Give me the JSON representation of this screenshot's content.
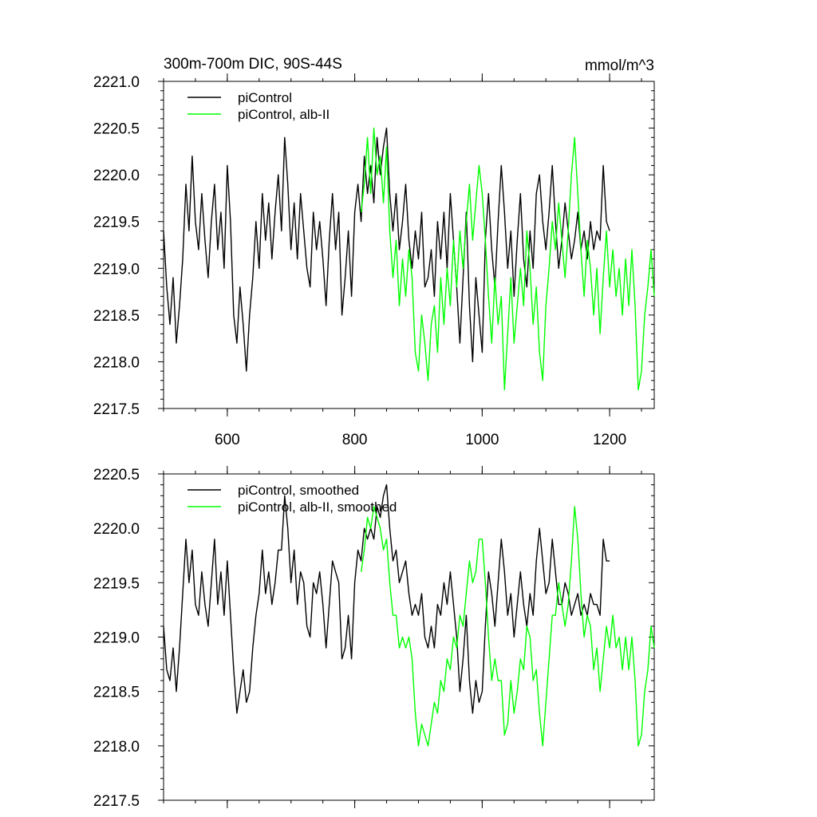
{
  "chart_data": [
    {
      "type": "line",
      "title_left": "300m-700m DIC, 90S-44S",
      "title_right": "mmol/m^3",
      "xlabel": "",
      "ylabel": "",
      "xlim": [
        500,
        1270
      ],
      "ylim": [
        2217.5,
        2221.0
      ],
      "xticks": [
        600,
        800,
        1000,
        1200
      ],
      "xtick_labels": [
        "600",
        "800",
        "1000",
        "1200"
      ],
      "yticks": [
        2217.5,
        2218.0,
        2218.5,
        2219.0,
        2219.5,
        2220.0,
        2220.5,
        2221.0
      ],
      "ytick_labels": [
        "2217.5",
        "2218.0",
        "2218.5",
        "2219.0",
        "2219.5",
        "2220.0",
        "2220.5",
        "2221.0"
      ],
      "legend_position": "top-left",
      "series": [
        {
          "name": "piControl",
          "color": "#000000",
          "x": [
            500,
            505,
            510,
            515,
            520,
            525,
            530,
            535,
            540,
            545,
            550,
            555,
            560,
            565,
            570,
            575,
            580,
            585,
            590,
            595,
            600,
            605,
            610,
            615,
            620,
            625,
            630,
            635,
            640,
            645,
            650,
            655,
            660,
            665,
            670,
            675,
            680,
            685,
            690,
            695,
            700,
            705,
            710,
            715,
            720,
            725,
            730,
            735,
            740,
            745,
            750,
            755,
            760,
            765,
            770,
            775,
            780,
            785,
            790,
            795,
            800,
            805,
            810,
            815,
            820,
            825,
            830,
            835,
            840,
            845,
            850,
            855,
            860,
            865,
            870,
            875,
            880,
            885,
            890,
            895,
            900,
            905,
            910,
            915,
            920,
            925,
            930,
            935,
            940,
            945,
            950,
            955,
            960,
            965,
            970,
            975,
            980,
            985,
            990,
            995,
            1000,
            1005,
            1010,
            1015,
            1020,
            1025,
            1030,
            1035,
            1040,
            1045,
            1050,
            1055,
            1060,
            1065,
            1070,
            1075,
            1080,
            1085,
            1090,
            1095,
            1100,
            1105,
            1110,
            1115,
            1120,
            1125,
            1130,
            1135,
            1140,
            1145,
            1150,
            1155,
            1160,
            1165,
            1170,
            1175,
            1180,
            1185,
            1190,
            1195,
            1200
          ],
          "values": [
            2219.4,
            2218.8,
            2218.4,
            2218.9,
            2218.2,
            2218.6,
            2219.1,
            2219.9,
            2219.4,
            2220.2,
            2219.5,
            2219.2,
            2219.8,
            2219.3,
            2218.9,
            2219.5,
            2219.9,
            2219.2,
            2219.6,
            2219.0,
            2220.1,
            2219.5,
            2218.5,
            2218.2,
            2218.8,
            2218.4,
            2217.9,
            2218.5,
            2218.9,
            2219.5,
            2219.0,
            2219.8,
            2219.3,
            2219.7,
            2219.1,
            2219.6,
            2220.0,
            2219.4,
            2220.4,
            2219.9,
            2219.2,
            2219.7,
            2219.1,
            2219.8,
            2219.4,
            2219.0,
            2218.8,
            2219.6,
            2219.2,
            2219.5,
            2219.1,
            2218.6,
            2219.3,
            2219.8,
            2219.2,
            2219.6,
            2218.5,
            2218.9,
            2219.4,
            2218.7,
            2219.6,
            2219.9,
            2219.5,
            2220.2,
            2219.8,
            2220.1,
            2219.7,
            2220.4,
            2220.0,
            2220.3,
            2220.5,
            2219.8,
            2219.4,
            2219.8,
            2219.2,
            2219.5,
            2219.9,
            2219.3,
            2219.0,
            2219.4,
            2219.1,
            2219.6,
            2218.8,
            2218.9,
            2219.2,
            2218.7,
            2219.5,
            2219.1,
            2219.6,
            2219.0,
            2219.8,
            2219.3,
            2218.8,
            2218.2,
            2218.9,
            2219.6,
            2218.6,
            2218.0,
            2218.9,
            2218.5,
            2218.1,
            2219.3,
            2219.8,
            2219.2,
            2218.8,
            2219.5,
            2220.1,
            2219.6,
            2219.0,
            2219.4,
            2218.7,
            2219.3,
            2219.8,
            2219.1,
            2218.8,
            2219.4,
            2219.0,
            2219.8,
            2220.0,
            2219.5,
            2219.2,
            2219.6,
            2220.1,
            2219.5,
            2219.0,
            2219.3,
            2219.7,
            2219.4,
            2219.1,
            2219.3,
            2219.6,
            2219.2,
            2219.4,
            2219.1,
            2219.5,
            2219.2,
            2219.4,
            2219.3,
            2220.1,
            2219.5,
            2219.4
          ]
        },
        {
          "name": "piControl, alb-II",
          "color": "#00ff00",
          "x": [
            810,
            815,
            820,
            825,
            830,
            835,
            840,
            845,
            850,
            855,
            860,
            865,
            870,
            875,
            880,
            885,
            890,
            895,
            900,
            905,
            910,
            915,
            920,
            925,
            930,
            935,
            940,
            945,
            950,
            955,
            960,
            965,
            970,
            975,
            980,
            985,
            990,
            995,
            1000,
            1005,
            1010,
            1015,
            1020,
            1025,
            1030,
            1035,
            1040,
            1045,
            1050,
            1055,
            1060,
            1065,
            1070,
            1075,
            1080,
            1085,
            1090,
            1095,
            1100,
            1105,
            1110,
            1115,
            1120,
            1125,
            1130,
            1135,
            1140,
            1145,
            1150,
            1155,
            1160,
            1165,
            1170,
            1175,
            1180,
            1185,
            1190,
            1195,
            1200,
            1205,
            1210,
            1215,
            1220,
            1225,
            1230,
            1235,
            1240,
            1245,
            1250,
            1255,
            1260,
            1265,
            1270
          ],
          "values": [
            2219.6,
            2219.9,
            2220.4,
            2219.8,
            2220.5,
            2220.0,
            2220.2,
            2219.7,
            2220.3,
            2219.4,
            2218.9,
            2219.3,
            2218.6,
            2219.1,
            2218.7,
            2219.2,
            2218.9,
            2218.1,
            2217.9,
            2218.5,
            2218.2,
            2217.8,
            2218.4,
            2218.6,
            2218.1,
            2218.9,
            2218.4,
            2219.0,
            2218.6,
            2219.3,
            2218.8,
            2219.4,
            2219.0,
            2219.5,
            2219.9,
            2219.3,
            2219.7,
            2220.1,
            2219.8,
            2219.3,
            2218.7,
            2218.2,
            2218.9,
            2218.4,
            2218.7,
            2217.7,
            2218.3,
            2218.9,
            2218.2,
            2218.6,
            2219.0,
            2218.6,
            2219.4,
            2219.0,
            2218.4,
            2218.8,
            2218.1,
            2217.8,
            2218.6,
            2219.0,
            2219.5,
            2219.2,
            2219.7,
            2219.3,
            2218.9,
            2219.4,
            2220.0,
            2220.4,
            2219.8,
            2219.2,
            2218.7,
            2219.3,
            2219.0,
            2218.5,
            2219.0,
            2218.3,
            2218.9,
            2219.4,
            2218.8,
            2219.2,
            2218.7,
            2219.0,
            2218.5,
            2219.1,
            2218.6,
            2219.2,
            2218.6,
            2217.7,
            2217.9,
            2218.5,
            2218.8,
            2219.2,
            2218.7
          ]
        }
      ]
    },
    {
      "type": "line",
      "title_left": "",
      "title_right": "",
      "xlabel": "",
      "ylabel": "",
      "xlim": [
        500,
        1270
      ],
      "ylim": [
        2217.5,
        2220.5
      ],
      "xticks": [
        600,
        800,
        1000,
        1200
      ],
      "xtick_labels": [],
      "yticks": [
        2217.5,
        2218.0,
        2218.5,
        2219.0,
        2219.5,
        2220.0,
        2220.5
      ],
      "ytick_labels": [
        "2217.5",
        "2218.0",
        "2218.5",
        "2219.0",
        "2219.5",
        "2220.0",
        "2220.5"
      ],
      "legend_position": "top-left",
      "series": [
        {
          "name": "piControl, smoothed",
          "color": "#000000",
          "x": [
            500,
            505,
            510,
            515,
            520,
            525,
            530,
            535,
            540,
            545,
            550,
            555,
            560,
            565,
            570,
            575,
            580,
            585,
            590,
            595,
            600,
            605,
            610,
            615,
            620,
            625,
            630,
            635,
            640,
            645,
            650,
            655,
            660,
            665,
            670,
            675,
            680,
            685,
            690,
            695,
            700,
            705,
            710,
            715,
            720,
            725,
            730,
            735,
            740,
            745,
            750,
            755,
            760,
            765,
            770,
            775,
            780,
            785,
            790,
            795,
            800,
            805,
            810,
            815,
            820,
            825,
            830,
            835,
            840,
            845,
            850,
            855,
            860,
            865,
            870,
            875,
            880,
            885,
            890,
            895,
            900,
            905,
            910,
            915,
            920,
            925,
            930,
            935,
            940,
            945,
            950,
            955,
            960,
            965,
            970,
            975,
            980,
            985,
            990,
            995,
            1000,
            1005,
            1010,
            1015,
            1020,
            1025,
            1030,
            1035,
            1040,
            1045,
            1050,
            1055,
            1060,
            1065,
            1070,
            1075,
            1080,
            1085,
            1090,
            1095,
            1100,
            1105,
            1110,
            1115,
            1120,
            1125,
            1130,
            1135,
            1140,
            1145,
            1150,
            1155,
            1160,
            1165,
            1170,
            1175,
            1180,
            1185,
            1190,
            1195,
            1200
          ],
          "values": [
            2219.1,
            2218.7,
            2218.6,
            2218.9,
            2218.5,
            2218.9,
            2219.4,
            2219.9,
            2219.5,
            2219.8,
            2219.3,
            2219.2,
            2219.6,
            2219.3,
            2219.1,
            2219.5,
            2219.9,
            2219.3,
            2219.6,
            2219.2,
            2219.7,
            2219.2,
            2218.7,
            2218.3,
            2218.5,
            2218.7,
            2218.4,
            2218.5,
            2218.9,
            2219.2,
            2219.4,
            2219.8,
            2219.4,
            2219.6,
            2219.3,
            2219.5,
            2219.8,
            2219.8,
            2220.3,
            2220.0,
            2219.5,
            2219.8,
            2219.3,
            2219.6,
            2219.5,
            2219.1,
            2219.0,
            2219.5,
            2219.4,
            2219.6,
            2219.3,
            2218.9,
            2219.3,
            2219.7,
            2219.6,
            2219.5,
            2218.8,
            2218.9,
            2219.2,
            2218.8,
            2219.5,
            2219.8,
            2219.7,
            2220.0,
            2219.9,
            2220.0,
            2219.9,
            2220.2,
            2220.1,
            2220.3,
            2220.4,
            2220.0,
            2219.7,
            2219.8,
            2219.5,
            2219.6,
            2219.7,
            2219.4,
            2219.2,
            2219.3,
            2219.2,
            2219.4,
            2219.0,
            2218.9,
            2219.1,
            2218.9,
            2219.3,
            2219.2,
            2219.5,
            2219.3,
            2219.6,
            2219.3,
            2219.0,
            2218.5,
            2218.8,
            2219.2,
            2218.6,
            2218.3,
            2218.6,
            2218.4,
            2218.5,
            2219.1,
            2219.6,
            2219.4,
            2219.1,
            2219.5,
            2219.9,
            2219.6,
            2219.2,
            2219.4,
            2219.0,
            2219.3,
            2219.6,
            2219.3,
            2219.1,
            2219.4,
            2219.2,
            2219.7,
            2220.0,
            2219.7,
            2219.4,
            2219.5,
            2219.9,
            2219.6,
            2219.3,
            2219.3,
            2219.5,
            2219.4,
            2219.2,
            2219.3,
            2219.4,
            2219.2,
            2219.3,
            2219.2,
            2219.4,
            2219.3,
            2219.3,
            2219.2,
            2219.9,
            2219.7,
            2219.7
          ]
        },
        {
          "name": "piControl, alb-II, smoothed",
          "color": "#00ff00",
          "x": [
            810,
            815,
            820,
            825,
            830,
            835,
            840,
            845,
            850,
            855,
            860,
            865,
            870,
            875,
            880,
            885,
            890,
            895,
            900,
            905,
            910,
            915,
            920,
            925,
            930,
            935,
            940,
            945,
            950,
            955,
            960,
            965,
            970,
            975,
            980,
            985,
            990,
            995,
            1000,
            1005,
            1010,
            1015,
            1020,
            1025,
            1030,
            1035,
            1040,
            1045,
            1050,
            1055,
            1060,
            1065,
            1070,
            1075,
            1080,
            1085,
            1090,
            1095,
            1100,
            1105,
            1110,
            1115,
            1120,
            1125,
            1130,
            1135,
            1140,
            1145,
            1150,
            1155,
            1160,
            1165,
            1170,
            1175,
            1180,
            1185,
            1190,
            1195,
            1200,
            1205,
            1210,
            1215,
            1220,
            1225,
            1230,
            1235,
            1240,
            1245,
            1250,
            1255,
            1260,
            1265,
            1270
          ],
          "values": [
            2219.6,
            2219.8,
            2220.1,
            2220.0,
            2220.2,
            2220.1,
            2220.0,
            2219.8,
            2219.9,
            2219.5,
            2219.2,
            2219.2,
            2218.9,
            2219.0,
            2218.9,
            2219.0,
            2218.8,
            2218.3,
            2218.0,
            2218.2,
            2218.1,
            2218.0,
            2218.2,
            2218.4,
            2218.3,
            2218.6,
            2218.5,
            2218.8,
            2218.7,
            2219.0,
            2218.9,
            2219.2,
            2219.1,
            2219.4,
            2219.7,
            2219.5,
            2219.6,
            2219.9,
            2219.9,
            2219.5,
            2219.0,
            2218.6,
            2218.8,
            2218.6,
            2218.6,
            2218.1,
            2218.2,
            2218.6,
            2218.3,
            2218.5,
            2218.8,
            2218.7,
            2219.1,
            2219.0,
            2218.6,
            2218.7,
            2218.3,
            2218.0,
            2218.4,
            2218.8,
            2219.2,
            2219.2,
            2219.5,
            2219.3,
            2219.1,
            2219.3,
            2219.7,
            2220.2,
            2219.9,
            2219.4,
            2219.0,
            2219.2,
            2219.1,
            2218.7,
            2218.9,
            2218.5,
            2218.8,
            2219.1,
            2218.9,
            2219.2,
            2218.9,
            2219.0,
            2218.7,
            2219.0,
            2218.7,
            2219.0,
            2218.6,
            2218.0,
            2218.1,
            2218.5,
            2218.7,
            2219.1,
            2218.9
          ]
        }
      ]
    }
  ]
}
